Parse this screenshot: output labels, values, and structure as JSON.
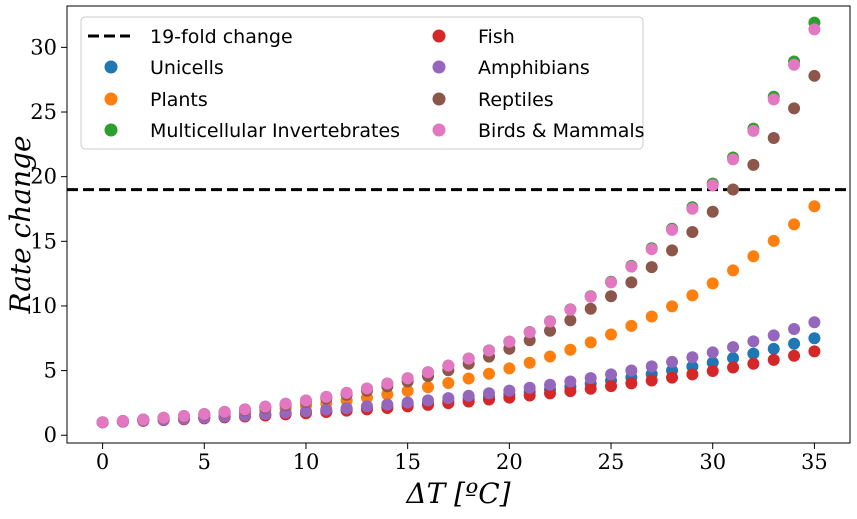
{
  "chart_data": {
    "type": "scatter",
    "title": "",
    "xlabel": "ΔT [ºC]",
    "ylabel": "Rate   change",
    "xlim": [
      -1.75,
      36.75
    ],
    "ylim": [
      -0.6,
      33.2
    ],
    "x_ticks": [
      0,
      5,
      10,
      15,
      20,
      25,
      30,
      35
    ],
    "y_ticks": [
      0,
      5,
      10,
      15,
      20,
      25,
      30
    ],
    "grid": false,
    "legend_position": "top-left",
    "legend_columns": 2,
    "reference_line": {
      "name": "19-fold change",
      "y": 19,
      "style": "dashed",
      "color": "#000000"
    },
    "x": [
      0,
      1,
      2,
      3,
      4,
      5,
      6,
      7,
      8,
      9,
      10,
      11,
      12,
      13,
      14,
      15,
      16,
      17,
      18,
      19,
      20,
      21,
      22,
      23,
      24,
      25,
      26,
      27,
      28,
      29,
      30,
      31,
      32,
      33,
      34,
      35
    ],
    "series": [
      {
        "name": "Unicells",
        "color": "#1f77b4",
        "values": [
          1.0,
          1.06,
          1.12,
          1.19,
          1.26,
          1.33,
          1.41,
          1.5,
          1.58,
          1.68,
          1.78,
          1.88,
          1.99,
          2.11,
          2.24,
          2.37,
          2.51,
          2.66,
          2.82,
          2.99,
          3.16,
          3.35,
          3.55,
          3.76,
          3.98,
          4.22,
          4.47,
          4.73,
          5.01,
          5.31,
          5.62,
          5.96,
          6.31,
          6.68,
          7.08,
          7.5
        ]
      },
      {
        "name": "Plants",
        "color": "#ff7f0e",
        "values": [
          1.0,
          1.09,
          1.18,
          1.28,
          1.39,
          1.51,
          1.64,
          1.78,
          1.93,
          2.1,
          2.28,
          2.47,
          2.68,
          2.91,
          3.16,
          3.43,
          3.72,
          4.04,
          4.39,
          4.76,
          5.17,
          5.61,
          6.09,
          6.61,
          7.18,
          7.79,
          8.46,
          9.18,
          9.97,
          10.82,
          11.75,
          12.75,
          13.84,
          15.03,
          16.31,
          17.71
        ]
      },
      {
        "name": "Multicellular Invertebrates",
        "color": "#2ca02c",
        "values": [
          1.0,
          1.1,
          1.22,
          1.35,
          1.49,
          1.64,
          1.81,
          2.0,
          2.21,
          2.44,
          2.69,
          2.97,
          3.28,
          3.62,
          4.0,
          4.41,
          4.87,
          5.38,
          5.94,
          6.56,
          7.24,
          7.99,
          8.82,
          9.74,
          10.75,
          11.87,
          13.1,
          14.46,
          15.97,
          17.63,
          19.46,
          21.48,
          23.72,
          26.18,
          28.91,
          31.91
        ]
      },
      {
        "name": "Fish",
        "color": "#d62728",
        "values": [
          1.0,
          1.05,
          1.11,
          1.17,
          1.24,
          1.3,
          1.38,
          1.45,
          1.53,
          1.61,
          1.7,
          1.8,
          1.9,
          2.0,
          2.11,
          2.23,
          2.35,
          2.48,
          2.61,
          2.76,
          2.91,
          3.07,
          3.24,
          3.41,
          3.6,
          3.8,
          4.01,
          4.23,
          4.46,
          4.71,
          4.97,
          5.24,
          5.53,
          5.83,
          6.15,
          6.49
        ]
      },
      {
        "name": "Amphibians",
        "color": "#9467bd",
        "values": [
          1.0,
          1.06,
          1.13,
          1.2,
          1.28,
          1.36,
          1.45,
          1.54,
          1.64,
          1.75,
          1.86,
          1.98,
          2.1,
          2.24,
          2.38,
          2.53,
          2.7,
          2.87,
          3.05,
          3.25,
          3.45,
          3.67,
          3.91,
          4.16,
          4.42,
          4.71,
          5.01,
          5.33,
          5.67,
          6.03,
          6.41,
          6.82,
          7.26,
          7.72,
          8.22,
          8.74
        ]
      },
      {
        "name": "Reptiles",
        "color": "#8c564b",
        "values": [
          1.0,
          1.1,
          1.21,
          1.33,
          1.46,
          1.61,
          1.77,
          1.94,
          2.14,
          2.35,
          2.59,
          2.84,
          3.13,
          3.44,
          3.78,
          4.16,
          4.57,
          5.03,
          5.53,
          6.08,
          6.69,
          7.35,
          8.08,
          8.89,
          9.78,
          10.75,
          11.82,
          13.0,
          14.3,
          15.72,
          17.29,
          19.01,
          20.91,
          22.99,
          25.28,
          27.8
        ]
      },
      {
        "name": "Birds & Mammals",
        "color": "#e377c2",
        "values": [
          1.0,
          1.1,
          1.22,
          1.35,
          1.49,
          1.64,
          1.81,
          2.0,
          2.21,
          2.44,
          2.69,
          2.97,
          3.28,
          3.62,
          4.0,
          4.41,
          4.87,
          5.38,
          5.93,
          6.55,
          7.23,
          7.97,
          8.8,
          9.71,
          10.71,
          11.82,
          13.04,
          14.39,
          15.88,
          17.52,
          19.34,
          21.34,
          23.54,
          25.98,
          28.66,
          31.39
        ]
      }
    ]
  }
}
